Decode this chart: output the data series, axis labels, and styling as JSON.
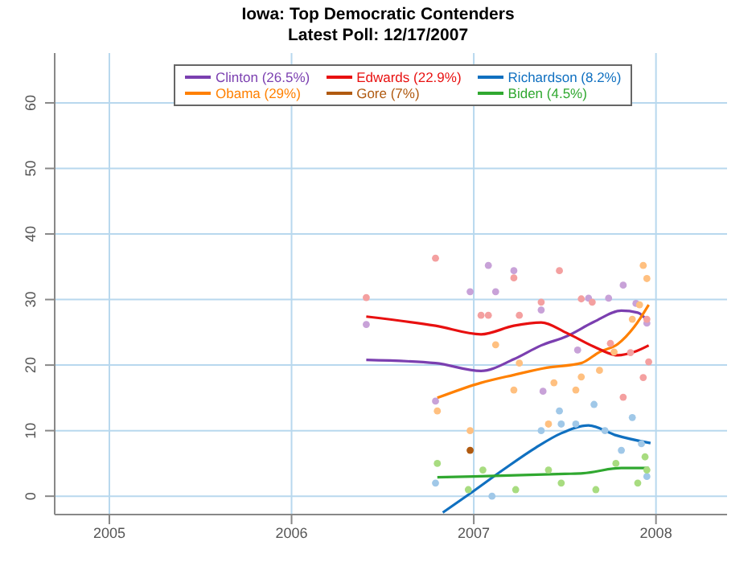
{
  "chart_data": {
    "type": "line",
    "title": "Iowa: Top Democratic Contenders",
    "subtitle": "Latest Poll: 12/17/2007",
    "xlim": [
      2004.7,
      2008.39
    ],
    "xticks": [
      2005,
      2006,
      2007,
      2008
    ],
    "ylim": [
      -2.8,
      67.6
    ],
    "yticks": [
      0,
      10,
      20,
      30,
      40,
      50,
      60
    ],
    "grid": true,
    "legend": "top",
    "series": [
      {
        "type": "scatter",
        "marker": "circle",
        "color": "#c8a2d8",
        "x": [
          2006.41,
          2006.79,
          2006.98,
          2007.08,
          2007.12,
          2007.22,
          2007.37,
          2007.38,
          2007.57,
          2007.63,
          2007.74,
          2007.82,
          2007.89,
          2007.95
        ],
        "values": [
          26.2,
          14.5,
          31.2,
          35.2,
          31.2,
          34.4,
          28.4,
          16.0,
          22.3,
          30.2,
          30.2,
          32.2,
          29.4,
          26.4
        ]
      },
      {
        "type": "scatter",
        "marker": "circle",
        "color": "#f4a0a0",
        "x": [
          2006.41,
          2006.79,
          2007.04,
          2007.08,
          2007.22,
          2007.25,
          2007.37,
          2007.47,
          2007.59,
          2007.65,
          2007.75,
          2007.82,
          2007.86,
          2007.93,
          2007.96,
          2007.95
        ],
        "values": [
          30.3,
          36.3,
          27.6,
          27.6,
          33.3,
          27.6,
          29.6,
          34.4,
          30.1,
          29.6,
          23.3,
          15.1,
          21.9,
          18.1,
          20.5,
          27.0
        ]
      },
      {
        "type": "scatter",
        "marker": "circle",
        "color": "#ffc080",
        "x": [
          2006.8,
          2006.98,
          2007.12,
          2007.22,
          2007.25,
          2007.41,
          2007.44,
          2007.56,
          2007.59,
          2007.69,
          2007.77,
          2007.87,
          2007.91,
          2007.93,
          2007.95
        ],
        "values": [
          13.0,
          10.0,
          23.1,
          16.2,
          20.3,
          11.0,
          17.3,
          16.2,
          18.2,
          19.2,
          22.0,
          27.0,
          29.2,
          35.2,
          33.2
        ]
      },
      {
        "type": "scatter",
        "marker": "circle",
        "color": "#a0c8e8",
        "x": [
          2006.79,
          2007.1,
          2007.37,
          2007.47,
          2007.48,
          2007.56,
          2007.66,
          2007.72,
          2007.81,
          2007.87,
          2007.92,
          2007.95
        ],
        "values": [
          2.0,
          0.0,
          10.0,
          13.0,
          11.0,
          11.0,
          14.0,
          10.0,
          7.0,
          12.0,
          8.0,
          3.0
        ]
      },
      {
        "type": "scatter",
        "marker": "circle",
        "color": "#a8dc80",
        "x": [
          2006.8,
          2006.97,
          2007.05,
          2007.23,
          2007.41,
          2007.48,
          2007.67,
          2007.78,
          2007.9,
          2007.94,
          2007.95
        ],
        "values": [
          5.0,
          1.0,
          4.0,
          1.0,
          4.0,
          2.0,
          1.0,
          5.0,
          2.0,
          6.0,
          4.0
        ]
      },
      {
        "name": "Clinton (26.5%)",
        "marker": "none",
        "color": "#7b3fb0",
        "x": [
          2006.41,
          2006.79,
          2007.04,
          2007.22,
          2007.37,
          2007.51,
          2007.66,
          2007.81,
          2007.9,
          2007.96
        ],
        "values": [
          20.8,
          20.3,
          19.1,
          20.9,
          23.0,
          24.4,
          26.6,
          28.3,
          28.0,
          26.5
        ]
      },
      {
        "name": "Obama (29%)",
        "marker": "none",
        "color": "#ff8000",
        "x": [
          2006.8,
          2007.04,
          2007.22,
          2007.4,
          2007.59,
          2007.69,
          2007.79,
          2007.88,
          2007.96
        ],
        "values": [
          15.0,
          17.3,
          18.5,
          19.6,
          20.3,
          22.0,
          23.2,
          25.8,
          29.2
        ]
      },
      {
        "name": "Edwards (22.9%)",
        "marker": "none",
        "color": "#e81010",
        "x": [
          2006.41,
          2006.79,
          2007.04,
          2007.22,
          2007.37,
          2007.51,
          2007.66,
          2007.79,
          2007.88,
          2007.96
        ],
        "values": [
          27.4,
          26.0,
          24.7,
          26.0,
          26.5,
          24.9,
          22.8,
          21.5,
          22.0,
          23.0
        ]
      },
      {
        "type": "scatter",
        "marker": "circle",
        "name": "Gore (7%)",
        "color": "#b05a10",
        "x": [
          2006.98
        ],
        "values": [
          7.0
        ]
      },
      {
        "name": "Richardson (8.2%)",
        "marker": "none",
        "color": "#1070c0",
        "x": [
          2006.83,
          2006.99,
          2007.16,
          2007.34,
          2007.48,
          2007.63,
          2007.78,
          2007.97
        ],
        "values": [
          -2.5,
          0.6,
          4.0,
          7.4,
          9.6,
          10.8,
          9.3,
          8.1
        ]
      },
      {
        "name": "Biden (4.5%)",
        "marker": "none",
        "color": "#30a830",
        "x": [
          2006.8,
          2007.0,
          2007.5,
          2007.6,
          2007.81,
          2007.96
        ],
        "values": [
          2.9,
          3.0,
          3.4,
          3.5,
          4.3,
          4.3
        ]
      }
    ]
  }
}
